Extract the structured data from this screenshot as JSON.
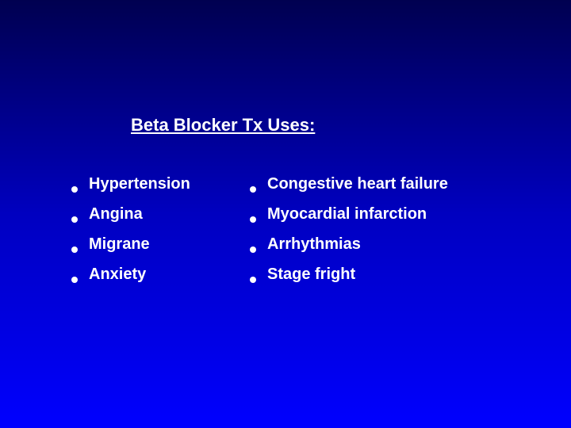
{
  "slide": {
    "title": "Beta Blocker  Tx Uses:",
    "background_gradient": {
      "top": "#000050",
      "mid": "#0000c0",
      "bottom": "#0000ff"
    },
    "title_color": "#ffffff",
    "bullet_color": "#ffffff",
    "text_color": "#ffffff",
    "title_fontsize": 22,
    "item_fontsize": 20,
    "columns": {
      "left": [
        "Hypertension",
        "Angina",
        "Migrane",
        "Anxiety"
      ],
      "right": [
        "Congestive heart failure",
        "Myocardial infarction",
        "Arrhythmias",
        "Stage fright"
      ]
    }
  }
}
